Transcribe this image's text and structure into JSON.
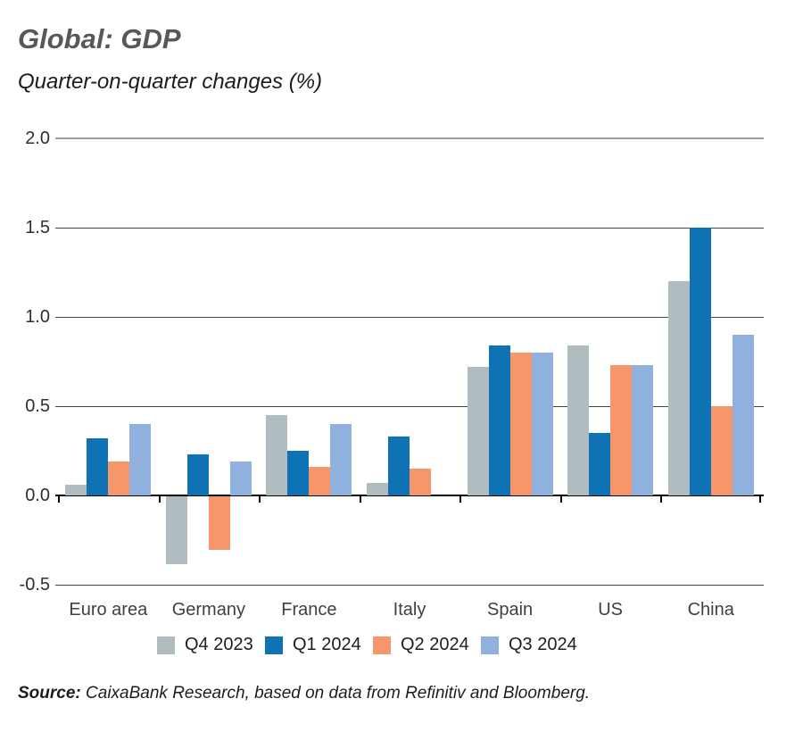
{
  "header": {
    "title": "Global: GDP",
    "subtitle": "Quarter-on-quarter changes (%)"
  },
  "chart_data": {
    "type": "bar",
    "title": "Global: GDP",
    "subtitle": "Quarter-on-quarter changes (%)",
    "unit": "%",
    "categories": [
      "Euro area",
      "Germany",
      "France",
      "Italy",
      "Spain",
      "US",
      "China"
    ],
    "series": [
      {
        "name": "Q4 2023",
        "color": "#b1bcc1",
        "values": [
          0.06,
          -0.38,
          0.45,
          0.07,
          0.72,
          0.84,
          1.2
        ]
      },
      {
        "name": "Q1 2024",
        "color": "#0e72b4",
        "values": [
          0.32,
          0.23,
          0.25,
          0.33,
          0.84,
          0.35,
          1.5
        ]
      },
      {
        "name": "Q2 2024",
        "color": "#f5976b",
        "values": [
          0.19,
          -0.3,
          0.16,
          0.15,
          0.8,
          0.73,
          0.5
        ]
      },
      {
        "name": "Q3 2024",
        "color": "#90b1de",
        "values": [
          0.4,
          0.19,
          0.4,
          0.0,
          0.8,
          0.73,
          0.9
        ]
      }
    ],
    "ylim": [
      -0.5,
      2.0
    ],
    "yticks": [
      2.0,
      1.5,
      1.0,
      0.5,
      0.0,
      -0.5
    ],
    "ytick_labels": [
      "2.0",
      "1.5",
      "1.0",
      "0.5",
      "0.0",
      "-0.5"
    ],
    "grid": "horizontal",
    "legend_position": "bottom",
    "axis_colors": {
      "zero_line": "#000000",
      "gridline": "#454545",
      "top_gridline": "#9aa0a3"
    }
  },
  "footer": {
    "source_label": "Source:",
    "source_text": "CaixaBank Research, based on data from Refinitiv and Bloomberg."
  }
}
